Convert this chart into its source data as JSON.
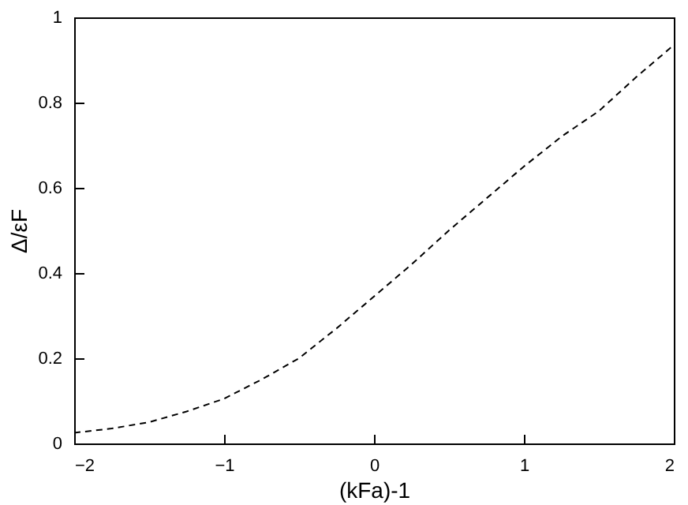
{
  "chart_data": {
    "type": "line",
    "xlabel": "(kFa)-1",
    "ylabel": "Δ/εF",
    "x": [
      -2,
      -1.75,
      -1.5,
      -1.25,
      -1,
      -0.75,
      -0.5,
      -0.25,
      0,
      0.25,
      0.5,
      0.75,
      1,
      1.25,
      1.5,
      1.75,
      2
    ],
    "series": [
      {
        "color": "#000000",
        "values": [
          0.025,
          0.035,
          0.05,
          0.075,
          0.105,
          0.15,
          0.2,
          0.27,
          0.345,
          0.42,
          0.5,
          0.575,
          0.65,
          0.72,
          0.78,
          0.86,
          0.935
        ]
      }
    ],
    "xlim": [
      -2,
      2
    ],
    "xticks": [
      -2,
      -1,
      0,
      1,
      2
    ],
    "ylim": [
      0,
      1
    ],
    "yticks": [
      0,
      0.2,
      0.4,
      0.6,
      0.8,
      1
    ],
    "grid": false,
    "marker": "none",
    "line_style": "dashed"
  }
}
